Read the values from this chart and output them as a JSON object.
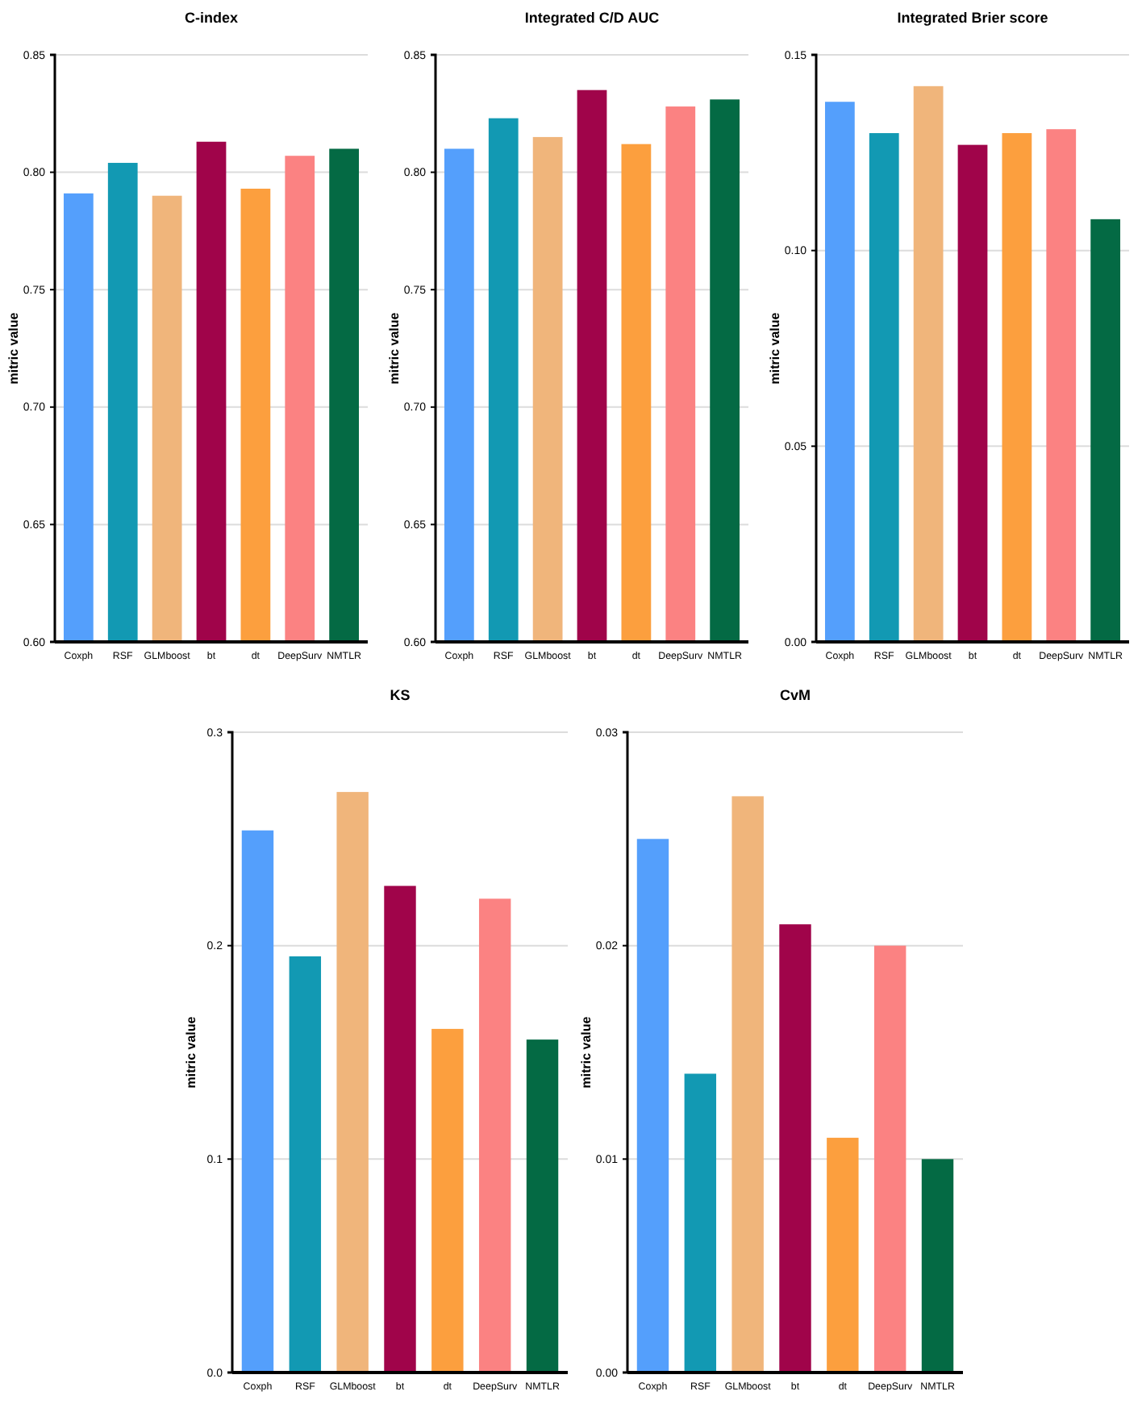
{
  "chart_data": [
    {
      "type": "bar",
      "title": "C-index",
      "ylabel": "mitric value",
      "categories": [
        "Coxph",
        "RSF",
        "GLMboost",
        "bt",
        "dt",
        "DeepSurv",
        "NMTLR"
      ],
      "values": [
        0.791,
        0.804,
        0.79,
        0.813,
        0.793,
        0.807,
        0.81
      ],
      "colors": [
        "#549ffc",
        "#1299b3",
        "#f0b57b",
        "#a0044a",
        "#fc9f3e",
        "#fb8282",
        "#046a44"
      ],
      "ylim": [
        0.6,
        0.85
      ],
      "yticks": [
        {
          "value": 0.6,
          "label": "0.60"
        },
        {
          "value": 0.65,
          "label": "0.65"
        },
        {
          "value": 0.7,
          "label": "0.70"
        },
        {
          "value": 0.75,
          "label": "0.75"
        },
        {
          "value": 0.8,
          "label": "0.80"
        },
        {
          "value": 0.85,
          "label": "0.85"
        }
      ],
      "grid": "y"
    },
    {
      "type": "bar",
      "title": "Integrated C/D AUC",
      "ylabel": "mitric value",
      "categories": [
        "Coxph",
        "RSF",
        "GLMboost",
        "bt",
        "dt",
        "DeepSurv",
        "NMTLR"
      ],
      "values": [
        0.81,
        0.823,
        0.815,
        0.835,
        0.812,
        0.828,
        0.831
      ],
      "colors": [
        "#549ffc",
        "#1299b3",
        "#f0b57b",
        "#a0044a",
        "#fc9f3e",
        "#fb8282",
        "#046a44"
      ],
      "ylim": [
        0.6,
        0.85
      ],
      "yticks": [
        {
          "value": 0.6,
          "label": "0.60"
        },
        {
          "value": 0.65,
          "label": "0.65"
        },
        {
          "value": 0.7,
          "label": "0.70"
        },
        {
          "value": 0.75,
          "label": "0.75"
        },
        {
          "value": 0.8,
          "label": "0.80"
        },
        {
          "value": 0.85,
          "label": "0.85"
        }
      ],
      "grid": "y"
    },
    {
      "type": "bar",
      "title": "Integrated Brier score",
      "ylabel": "mitric value",
      "categories": [
        "Coxph",
        "RSF",
        "GLMboost",
        "bt",
        "dt",
        "DeepSurv",
        "NMTLR"
      ],
      "values": [
        0.138,
        0.13,
        0.142,
        0.127,
        0.13,
        0.131,
        0.108
      ],
      "colors": [
        "#549ffc",
        "#1299b3",
        "#f0b57b",
        "#a0044a",
        "#fc9f3e",
        "#fb8282",
        "#046a44"
      ],
      "ylim": [
        0,
        0.15
      ],
      "yticks": [
        {
          "value": 0,
          "label": "0.00"
        },
        {
          "value": 0.05,
          "label": "0.05"
        },
        {
          "value": 0.1,
          "label": "0.10"
        },
        {
          "value": 0.15,
          "label": "0.15"
        }
      ],
      "grid": "y"
    },
    {
      "type": "bar",
      "title": "KS",
      "ylabel": "mitric value",
      "categories": [
        "Coxph",
        "RSF",
        "GLMboost",
        "bt",
        "dt",
        "DeepSurv",
        "NMTLR"
      ],
      "values": [
        0.254,
        0.195,
        0.272,
        0.228,
        0.161,
        0.222,
        0.156
      ],
      "colors": [
        "#549ffc",
        "#1299b3",
        "#f0b57b",
        "#a0044a",
        "#fc9f3e",
        "#fb8282",
        "#046a44"
      ],
      "ylim": [
        0,
        0.3
      ],
      "yticks": [
        {
          "value": 0,
          "label": "0.0"
        },
        0.1,
        0.2,
        0.3
      ],
      "grid": "y"
    },
    {
      "type": "bar",
      "title": "CvM",
      "ylabel": "mitric value",
      "categories": [
        "Coxph",
        "RSF",
        "GLMboost",
        "bt",
        "dt",
        "DeepSurv",
        "NMTLR"
      ],
      "values": [
        0.025,
        0.014,
        0.027,
        0.021,
        0.011,
        0.02,
        0.01
      ],
      "colors": [
        "#549ffc",
        "#1299b3",
        "#f0b57b",
        "#a0044a",
        "#fc9f3e",
        "#fb8282",
        "#046a44"
      ],
      "ylim": [
        0,
        0.03
      ],
      "yticks": [
        {
          "value": 0,
          "label": "0.00"
        },
        {
          "value": 0.01,
          "label": "0.01"
        },
        {
          "value": 0.02,
          "label": "0.02"
        },
        {
          "value": 0.03,
          "label": "0.03"
        }
      ],
      "grid": "y"
    }
  ]
}
